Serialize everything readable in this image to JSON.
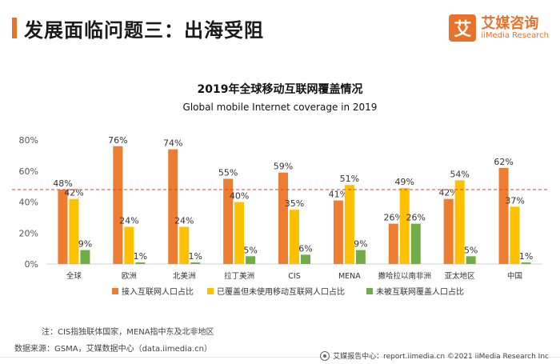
{
  "header": {
    "title": "发展面临问题三：出海受阻",
    "logo_mark": "艾",
    "logo_name": "艾媒咨询",
    "logo_en": "iiMedia Research"
  },
  "colors": {
    "accent": "#e8712b",
    "series_1": "#ed7d31",
    "series_2": "#ffc000",
    "series_3": "#70ad47",
    "refline": "#e53935"
  },
  "chart_data": {
    "type": "bar",
    "title": "2019年全球移动互联网覆盖情况",
    "subtitle": "Global mobile Internet coverage in 2019",
    "categories": [
      "全球",
      "欧洲",
      "北美洲",
      "拉丁美洲",
      "CIS",
      "MENA",
      "撒哈拉以南非洲",
      "亚太地区",
      "中国"
    ],
    "series": [
      {
        "name": "接入互联网人口占比",
        "values": [
          48,
          76,
          74,
          55,
          59,
          41,
          26,
          42,
          62
        ]
      },
      {
        "name": "已覆盖但未使用移动互联网人口占比",
        "values": [
          42,
          24,
          24,
          40,
          35,
          51,
          49,
          54,
          37
        ]
      },
      {
        "name": "未被互联网覆盖人口占比",
        "values": [
          9,
          1,
          1,
          5,
          6,
          9,
          26,
          5,
          1
        ]
      }
    ],
    "yticks": [
      "0%",
      "20%",
      "40%",
      "60%",
      "80%"
    ],
    "ylim": [
      0,
      80
    ],
    "value_suffix": "%",
    "reference_line": 48,
    "legend_position": "bottom",
    "grid": false
  },
  "footnotes": {
    "note": "注：CIS指独联体国家，MENA指中东及北非地区",
    "source": "数据来源：GSMA，艾媒数据中心（data.iimedia.cn）",
    "footer": "艾媒报告中心：report.iimedia.cn  ©2021  iiMedia Research  Inc"
  }
}
